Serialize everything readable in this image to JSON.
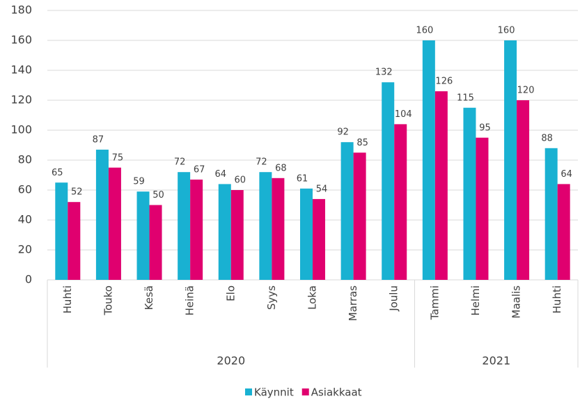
{
  "chart_data": {
    "type": "bar",
    "category_groups": [
      {
        "name": "2020",
        "categories": [
          "Huhti",
          "Touko",
          "Kesä",
          "Heinä",
          "Elo",
          "Syys",
          "Loka",
          "Marras",
          "Joulu"
        ]
      },
      {
        "name": "2021",
        "categories": [
          "Tammi",
          "Helmi",
          "Maalis",
          "Huhti"
        ]
      }
    ],
    "series": [
      {
        "name": "Käynnit",
        "color": "#19b1d2",
        "values": [
          65,
          87,
          59,
          72,
          64,
          72,
          61,
          92,
          132,
          160,
          115,
          160,
          88
        ]
      },
      {
        "name": "Asiakkaat",
        "color": "#e0006f",
        "values": [
          52,
          75,
          50,
          67,
          60,
          68,
          54,
          85,
          104,
          126,
          95,
          120,
          64
        ]
      }
    ],
    "ylim": [
      0,
      180
    ],
    "yticks": [
      0,
      20,
      40,
      60,
      80,
      100,
      120,
      140,
      160,
      180
    ],
    "grid": true,
    "legend": "bottom"
  }
}
